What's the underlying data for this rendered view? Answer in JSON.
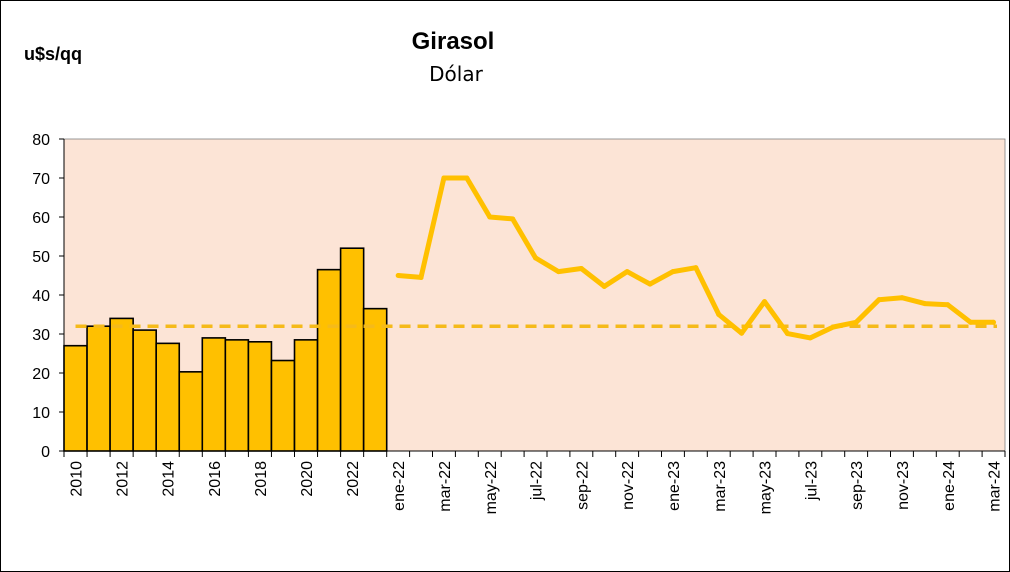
{
  "chart_data": {
    "type": "bar",
    "title": "Girasol",
    "subtitle": "Dólar",
    "ylabel": "u$s/qq",
    "ylim": [
      0,
      80
    ],
    "yticks": [
      0,
      10,
      20,
      30,
      40,
      50,
      60,
      70,
      80
    ],
    "annual": {
      "categories": [
        "2010",
        "2011",
        "2012",
        "2013",
        "2014",
        "2015",
        "2016",
        "2017",
        "2018",
        "2019",
        "2020",
        "2021",
        "2022",
        "2023"
      ],
      "values": [
        27,
        32,
        34,
        31,
        27.6,
        20.3,
        29,
        28.5,
        28,
        23.2,
        28.5,
        46.5,
        52,
        36.5
      ]
    },
    "monthly": {
      "categories": [
        "ene-22",
        "feb-22",
        "mar-22",
        "abr-22",
        "may-22",
        "jun-22",
        "jul-22",
        "ago-22",
        "sep-22",
        "oct-22",
        "nov-22",
        "dic-22",
        "ene-23",
        "feb-23",
        "mar-23",
        "abr-23",
        "may-23",
        "jun-23",
        "jul-23",
        "ago-23",
        "sep-23",
        "oct-23",
        "nov-23",
        "dic-23",
        "ene-24",
        "feb-24",
        "mar-24"
      ],
      "values": [
        45,
        44.5,
        70,
        70,
        60,
        59.5,
        49.5,
        46,
        46.8,
        42.2,
        46,
        42.8,
        46,
        47,
        35,
        30.2,
        38.3,
        30.1,
        29,
        31.8,
        33,
        38.8,
        39.3,
        37.8,
        37.5,
        33,
        33
      ]
    },
    "reference_line": {
      "value": 32,
      "style": "dashed"
    },
    "x_tick_labels": [
      "2010",
      "2012",
      "2014",
      "2016",
      "2018",
      "2020",
      "2022",
      "ene-22",
      "mar-22",
      "may-22",
      "jul-22",
      "sep-22",
      "nov-22",
      "ene-23",
      "mar-23",
      "may-23",
      "jul-23",
      "sep-23",
      "nov-23",
      "ene-24",
      "mar-24"
    ],
    "colors": {
      "bar_fill": "#FFC000",
      "line": "#FFC000",
      "dashed_line": "#F5BA1A",
      "plot_background": "#FCE4D6"
    },
    "grid": false,
    "legend": "none"
  }
}
